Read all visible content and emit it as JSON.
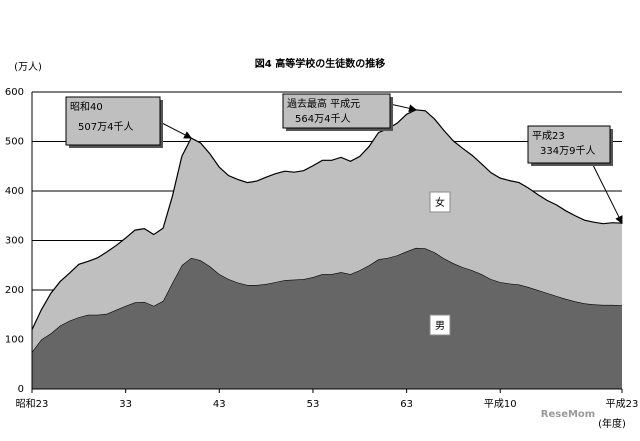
{
  "chart_data": {
    "type": "stacked-area",
    "title": "図4 高等学校の生徒数の推移",
    "y_label": "(万人)",
    "x_label": "(年度)",
    "watermark": "ReseMom",
    "categories": [
      "昭和23",
      null,
      null,
      null,
      null,
      null,
      null,
      null,
      null,
      null,
      "33",
      null,
      null,
      null,
      null,
      null,
      null,
      null,
      null,
      null,
      "43",
      null,
      null,
      null,
      null,
      null,
      null,
      null,
      null,
      null,
      "53",
      null,
      null,
      null,
      null,
      null,
      null,
      null,
      null,
      null,
      "63",
      null,
      null,
      null,
      null,
      null,
      null,
      null,
      null,
      null,
      "平成10",
      null,
      null,
      null,
      null,
      null,
      null,
      null,
      null,
      null,
      null,
      null,
      null,
      "平成23"
    ],
    "series": [
      {
        "name": "男",
        "color": "#666666",
        "values": [
          75,
          100,
          112,
          128,
          138,
          145,
          150,
          150,
          152,
          160,
          168,
          175,
          176,
          168,
          178,
          215,
          250,
          265,
          260,
          248,
          232,
          222,
          215,
          210,
          210,
          212,
          216,
          220,
          221,
          222,
          226,
          232,
          232,
          236,
          232,
          240,
          250,
          262,
          265,
          270,
          278,
          285,
          284,
          276,
          264,
          254,
          246,
          240,
          232,
          222,
          216,
          213,
          211,
          206,
          200,
          194,
          188,
          182,
          177,
          173,
          171,
          170,
          170,
          169
        ]
      },
      {
        "name": "女",
        "color": "#bfbfbf",
        "values": [
          45,
          60,
          81,
          89,
          96,
          107,
          108,
          115,
          125,
          130,
          137,
          146,
          148,
          144,
          147,
          175,
          220,
          242,
          237,
          227,
          216,
          209,
          208,
          207,
          210,
          216,
          219,
          220,
          217,
          219,
          225,
          230,
          230,
          232,
          228,
          230,
          240,
          256,
          261,
          267,
          277,
          279,
          278,
          269,
          258,
          247,
          240,
          232,
          223,
          215,
          210,
          208,
          206,
          200,
          193,
          187,
          184,
          178,
          173,
          168,
          166,
          164,
          166,
          166
        ]
      }
    ],
    "ylim": [
      0,
      600
    ],
    "yticks": [
      0,
      100,
      200,
      300,
      400,
      500,
      600
    ],
    "grid": true,
    "annotations": [
      {
        "text": [
          "昭和40",
          "507万4千人"
        ]
      },
      {
        "text": [
          "過去最高 平成元",
          "564万4千人"
        ]
      },
      {
        "text": [
          "平成23",
          "334万9千人"
        ]
      }
    ]
  }
}
